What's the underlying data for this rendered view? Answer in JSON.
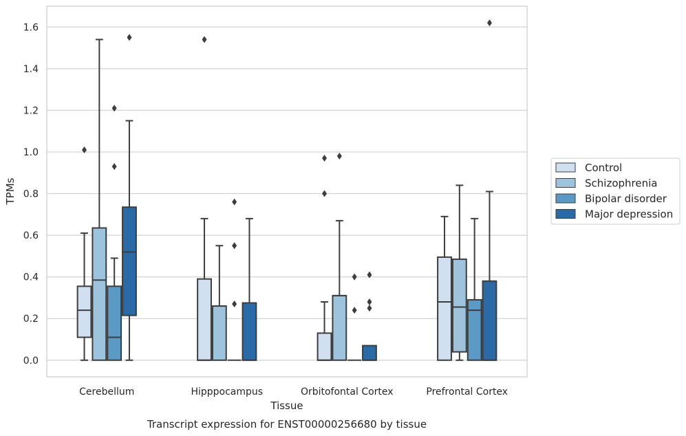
{
  "chart_data": {
    "type": "box",
    "title": "",
    "xlabel": "Tissue",
    "ylabel": "TPMs",
    "caption": "Transcript expression for ENST00000256680 by tissue",
    "ylim": [
      -0.08,
      1.7
    ],
    "yticks": [
      0.0,
      0.2,
      0.4,
      0.6,
      0.8,
      1.0,
      1.2,
      1.4,
      1.6
    ],
    "ytick_labels": [
      "0.0",
      "0.2",
      "0.4",
      "0.6",
      "0.8",
      "1.0",
      "1.2",
      "1.4",
      "1.6"
    ],
    "grid": "horizontal",
    "legend_position": "right",
    "categories": [
      "Cerebellum",
      "Hipppocampus",
      "Orbitofontal Cortex",
      "Prefrontal Cortex"
    ],
    "series": [
      {
        "name": "Control",
        "color": "#d0e0f1",
        "boxes": [
          {
            "whisker_low": 0.0,
            "q1": 0.11,
            "median": 0.24,
            "q3": 0.355,
            "whisker_high": 0.61,
            "outliers": [
              1.01
            ]
          },
          {
            "whisker_low": 0.0,
            "q1": 0.0,
            "median": 0.0,
            "q3": 0.39,
            "whisker_high": 0.68,
            "outliers": [
              1.54
            ]
          },
          {
            "whisker_low": 0.0,
            "q1": 0.0,
            "median": 0.0,
            "q3": 0.13,
            "whisker_high": 0.28,
            "outliers": [
              0.97,
              0.8
            ]
          },
          {
            "whisker_low": 0.0,
            "q1": 0.0,
            "median": 0.28,
            "q3": 0.495,
            "whisker_high": 0.69,
            "outliers": []
          }
        ]
      },
      {
        "name": "Schizophrenia",
        "color": "#9dc3dd",
        "boxes": [
          {
            "whisker_low": 0.0,
            "q1": 0.0,
            "median": 0.385,
            "q3": 0.635,
            "whisker_high": 1.54,
            "outliers": []
          },
          {
            "whisker_low": 0.0,
            "q1": 0.0,
            "median": 0.26,
            "q3": 0.26,
            "whisker_high": 0.55,
            "outliers": []
          },
          {
            "whisker_low": 0.0,
            "q1": 0.0,
            "median": 0.31,
            "q3": 0.31,
            "whisker_high": 0.67,
            "outliers": [
              0.98
            ]
          },
          {
            "whisker_low": 0.0,
            "q1": 0.04,
            "median": 0.255,
            "q3": 0.485,
            "whisker_high": 0.84,
            "outliers": []
          }
        ]
      },
      {
        "name": "Bipolar disorder",
        "color": "#5a9ac5",
        "boxes": [
          {
            "whisker_low": 0.0,
            "q1": 0.0,
            "median": 0.11,
            "q3": 0.355,
            "whisker_high": 0.49,
            "outliers": [
              1.21,
              0.93
            ]
          },
          {
            "whisker_low": 0.0,
            "q1": 0.0,
            "median": 0.0,
            "q3": 0.0,
            "whisker_high": 0.0,
            "outliers": [
              0.76,
              0.55,
              0.27
            ]
          },
          {
            "whisker_low": 0.0,
            "q1": 0.0,
            "median": 0.0,
            "q3": 0.0,
            "whisker_high": 0.0,
            "outliers": [
              0.4,
              0.24
            ]
          },
          {
            "whisker_low": 0.0,
            "q1": 0.0,
            "median": 0.24,
            "q3": 0.29,
            "whisker_high": 0.68,
            "outliers": []
          }
        ]
      },
      {
        "name": "Major depression",
        "color": "#2a6aa7",
        "boxes": [
          {
            "whisker_low": 0.0,
            "q1": 0.215,
            "median": 0.52,
            "q3": 0.735,
            "whisker_high": 1.15,
            "outliers": [
              1.55
            ]
          },
          {
            "whisker_low": 0.0,
            "q1": 0.0,
            "median": 0.0,
            "q3": 0.275,
            "whisker_high": 0.68,
            "outliers": []
          },
          {
            "whisker_low": 0.0,
            "q1": 0.0,
            "median": 0.0,
            "q3": 0.07,
            "whisker_high": 0.07,
            "outliers": [
              0.41,
              0.28,
              0.25
            ]
          },
          {
            "whisker_low": 0.0,
            "q1": 0.0,
            "median": 0.0,
            "q3": 0.38,
            "whisker_high": 0.81,
            "outliers": [
              1.62
            ]
          }
        ]
      }
    ]
  }
}
